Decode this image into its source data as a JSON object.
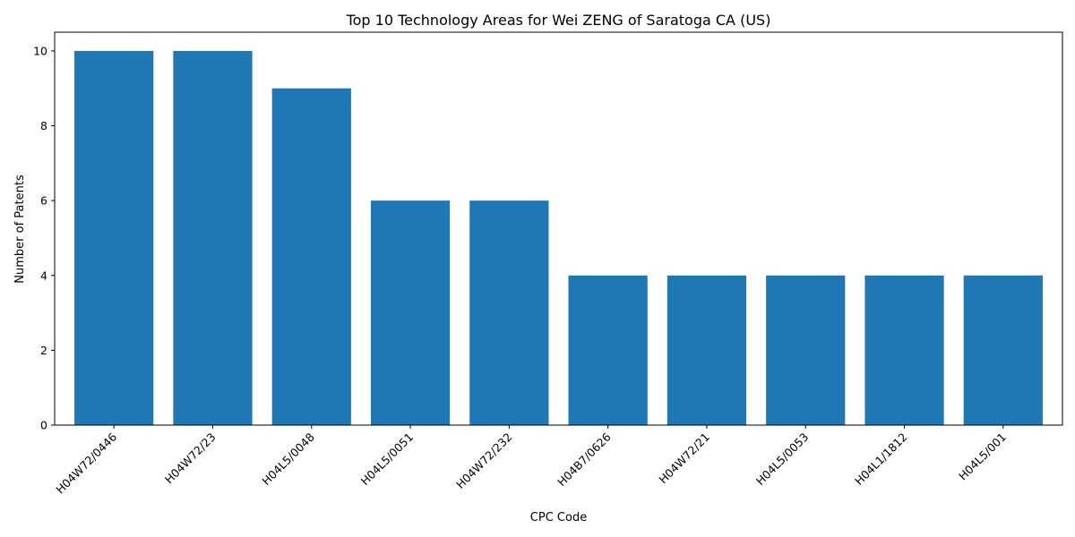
{
  "chart_data": {
    "type": "bar",
    "title": "Top 10 Technology Areas for Wei ZENG of Saratoga CA (US)",
    "xlabel": "CPC Code",
    "ylabel": "Number of Patents",
    "categories": [
      "H04W72/0446",
      "H04W72/23",
      "H04L5/0048",
      "H04L5/0051",
      "H04W72/232",
      "H04B7/0626",
      "H04W72/21",
      "H04L5/0053",
      "H04L1/1812",
      "H04L5/001"
    ],
    "values": [
      10,
      10,
      9,
      6,
      6,
      4,
      4,
      4,
      4,
      4
    ],
    "ylim": [
      0,
      10.5
    ],
    "yticks": [
      0,
      2,
      4,
      6,
      8,
      10
    ],
    "grid": false,
    "bar_color": "#1f77b4"
  }
}
